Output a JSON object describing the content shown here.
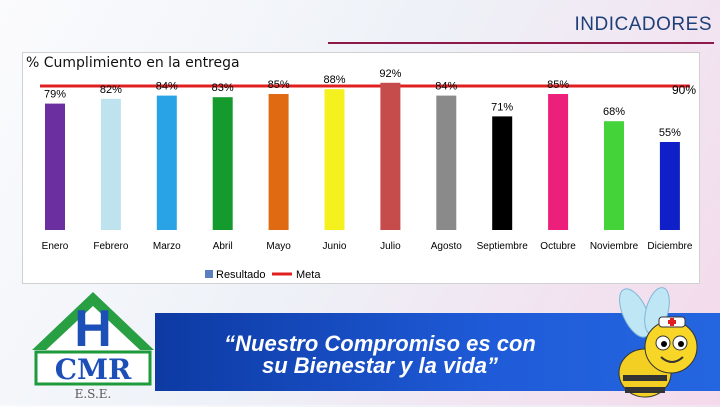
{
  "header": {
    "title": "INDICADORES"
  },
  "chart_data": {
    "type": "bar",
    "title": "% Cumplimiento en la entrega",
    "categories": [
      "Enero",
      "Febrero",
      "Marzo",
      "Abril",
      "Mayo",
      "Junio",
      "Julio",
      "Agosto",
      "Septiembre",
      "Octubre",
      "Noviembre",
      "Diciembre"
    ],
    "values": [
      79,
      82,
      84,
      83,
      85,
      88,
      92,
      84,
      71,
      85,
      68,
      55
    ],
    "value_labels": [
      "79%",
      "82%",
      "84%",
      "83%",
      "85%",
      "88%",
      "92%",
      "84%",
      "71%",
      "85%",
      "68%",
      "55%"
    ],
    "colors": [
      "#6b2fa0",
      "#bfe3ee",
      "#2aa3e6",
      "#159a2e",
      "#e06a12",
      "#f4f11e",
      "#c64b4b",
      "#8a8a8a",
      "#000000",
      "#ec1f7a",
      "#44d43a",
      "#1020c8"
    ],
    "series": [
      {
        "name": "Resultado",
        "color": "#5a7fbf"
      },
      {
        "name": "Meta",
        "color": "#e02020",
        "value": 90,
        "label": "90%"
      }
    ],
    "ylim": [
      0,
      100
    ],
    "grid": false,
    "legend": "bottom"
  },
  "banner": {
    "slogan_line1": "“Nuestro Compromiso es con",
    "slogan_line2": "su Bienestar y la vida”"
  },
  "logo": {
    "big_letter": "H",
    "letters": "CMR",
    "subtitle": "E.S.E."
  }
}
